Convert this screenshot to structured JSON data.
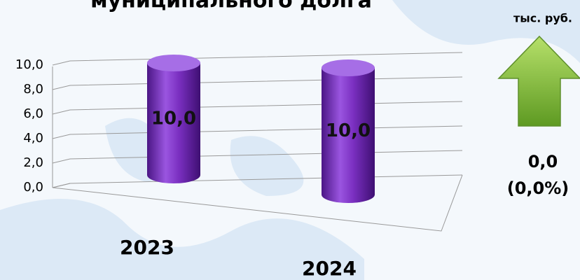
{
  "chart_data": {
    "type": "bar",
    "title": "муниципального долга",
    "unit": "тыс. руб.",
    "categories": [
      "2023",
      "2024"
    ],
    "values": [
      10.0,
      10.0
    ],
    "value_labels": [
      "10,0",
      "10,0"
    ],
    "color": "#7a2fc0",
    "ylim": [
      0,
      10
    ],
    "yticks": [
      {
        "value": 0,
        "label": "0,0"
      },
      {
        "value": 2,
        "label": "2,0"
      },
      {
        "value": 4,
        "label": "4,0"
      },
      {
        "value": 6,
        "label": "6,0"
      },
      {
        "value": 8,
        "label": "8,0"
      },
      {
        "value": 10,
        "label": "10,0"
      }
    ],
    "grid": true,
    "change": {
      "value": 0,
      "label": "0,0"
    },
    "change_percent": {
      "value": 0,
      "label": "(0,0%)"
    }
  }
}
